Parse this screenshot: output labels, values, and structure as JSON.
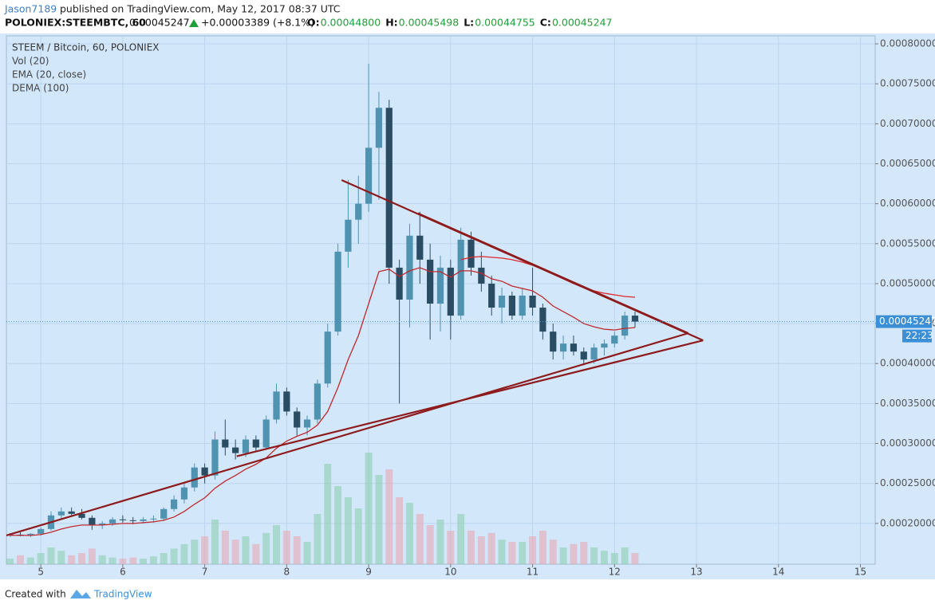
{
  "header": {
    "author": "Jason7189",
    "published": "published on TradingView.com, May 12, 2017 08:37 UTC",
    "symbol": "POLONIEX:STEEMBTC, 60",
    "last": "0.00045247",
    "change": "+0.00003389 (+8.1%)",
    "ohlc": [
      {
        "label": "O:",
        "value": "0.00044800"
      },
      {
        "label": "H:",
        "value": "0.00045498"
      },
      {
        "label": "L:",
        "value": "0.00044755"
      },
      {
        "label": "C:",
        "value": "0.00045247"
      }
    ]
  },
  "chart_data": {
    "type": "candlestick",
    "title": "STEEM / Bitcoin, 60, POLONIEX",
    "up_color": "#4f93b0",
    "down_color": "#2b4d63",
    "x": [
      4.625,
      4.75,
      4.875,
      5.0,
      5.125,
      5.25,
      5.375,
      5.5,
      5.625,
      5.75,
      5.875,
      6.0,
      6.125,
      6.25,
      6.375,
      6.5,
      6.625,
      6.75,
      6.875,
      7.0,
      7.125,
      7.25,
      7.375,
      7.5,
      7.625,
      7.75,
      7.875,
      8.0,
      8.125,
      8.25,
      8.375,
      8.5,
      8.625,
      8.75,
      8.875,
      9.0,
      9.125,
      9.25,
      9.375,
      9.5,
      9.625,
      9.75,
      9.875,
      10.0,
      10.125,
      10.25,
      10.375,
      10.5,
      10.625,
      10.75,
      10.875,
      11.0,
      11.125,
      11.25,
      11.375,
      11.5,
      11.625,
      11.75,
      11.875,
      12.0,
      12.125,
      12.25
    ],
    "open": [
      0.000185,
      0.000186,
      0.000185,
      0.000187,
      0.000193,
      0.00021,
      0.000215,
      0.000212,
      0.000207,
      0.000198,
      0.0002,
      0.000205,
      0.000204,
      0.000203,
      0.000205,
      0.000206,
      0.000218,
      0.00023,
      0.000245,
      0.00027,
      0.00026,
      0.000305,
      0.000295,
      0.000288,
      0.000305,
      0.000295,
      0.00033,
      0.000365,
      0.00034,
      0.00032,
      0.00033,
      0.000375,
      0.00044,
      0.00054,
      0.00058,
      0.0006,
      0.00067,
      0.00072,
      0.00052,
      0.00048,
      0.00056,
      0.00053,
      0.000475,
      0.00052,
      0.00046,
      0.000555,
      0.00052,
      0.0005,
      0.00047,
      0.000485,
      0.00046,
      0.000485,
      0.00047,
      0.00044,
      0.000415,
      0.000425,
      0.000415,
      0.000405,
      0.00042,
      0.000425,
      0.000435,
      0.00046
    ],
    "high": [
      0.000188,
      0.000189,
      0.000188,
      0.000195,
      0.000215,
      0.00022,
      0.00022,
      0.000218,
      0.00021,
      0.000203,
      0.000208,
      0.00021,
      0.000208,
      0.000208,
      0.00021,
      0.00022,
      0.000235,
      0.00025,
      0.000275,
      0.000275,
      0.000315,
      0.00033,
      0.000305,
      0.00031,
      0.00031,
      0.000335,
      0.000375,
      0.00037,
      0.000345,
      0.000335,
      0.00038,
      0.00045,
      0.00055,
      0.00063,
      0.000635,
      0.000775,
      0.00074,
      0.00073,
      0.00053,
      0.000575,
      0.00059,
      0.00055,
      0.000535,
      0.00053,
      0.00057,
      0.000565,
      0.00054,
      0.00051,
      0.000495,
      0.00049,
      0.000495,
      0.00052,
      0.000475,
      0.00045,
      0.000435,
      0.000435,
      0.00042,
      0.000425,
      0.00043,
      0.00044,
      0.000465,
      0.000465
    ],
    "low": [
      0.000183,
      0.000184,
      0.000183,
      0.000185,
      0.000191,
      0.000205,
      0.000208,
      0.000205,
      0.000192,
      0.000193,
      0.000197,
      0.000201,
      0.000199,
      0.0002,
      0.000201,
      0.000203,
      0.000215,
      0.000225,
      0.00024,
      0.00025,
      0.000255,
      0.000285,
      0.00028,
      0.000283,
      0.00029,
      0.000292,
      0.000325,
      0.000335,
      0.00031,
      0.00031,
      0.000325,
      0.00037,
      0.000435,
      0.00052,
      0.00055,
      0.00059,
      0.000605,
      0.0005,
      0.00035,
      0.000445,
      0.0005,
      0.00043,
      0.00044,
      0.00043,
      0.000455,
      0.00051,
      0.00049,
      0.00046,
      0.00045,
      0.000455,
      0.000455,
      0.00046,
      0.00043,
      0.000405,
      0.000405,
      0.00041,
      0.000398,
      0.0004,
      0.00041,
      0.00042,
      0.00043,
      0.000445
    ],
    "close": [
      0.000186,
      0.000185,
      0.000187,
      0.000193,
      0.00021,
      0.000215,
      0.000212,
      0.000207,
      0.000198,
      0.0002,
      0.000205,
      0.000204,
      0.000203,
      0.000205,
      0.000206,
      0.000218,
      0.00023,
      0.000245,
      0.00027,
      0.00026,
      0.000305,
      0.000295,
      0.000288,
      0.000305,
      0.000295,
      0.00033,
      0.000365,
      0.00034,
      0.00032,
      0.00033,
      0.000375,
      0.00044,
      0.00054,
      0.00058,
      0.0006,
      0.00067,
      0.00072,
      0.00052,
      0.00048,
      0.00056,
      0.00053,
      0.000475,
      0.00052,
      0.00046,
      0.000555,
      0.00052,
      0.0005,
      0.00047,
      0.000485,
      0.00046,
      0.000485,
      0.00047,
      0.00044,
      0.000415,
      0.000425,
      0.000415,
      0.000405,
      0.00042,
      0.000425,
      0.000435,
      0.00046,
      0.00045247
    ],
    "volume": {
      "name": "Vol (20)",
      "up_color": "#8ccfb0",
      "down_color": "#e8a9b4",
      "values": [
        5,
        8,
        6,
        10,
        15,
        12,
        8,
        10,
        14,
        8,
        6,
        5,
        6,
        5,
        7,
        10,
        14,
        18,
        22,
        25,
        40,
        30,
        22,
        25,
        18,
        28,
        35,
        30,
        25,
        20,
        45,
        90,
        70,
        60,
        50,
        100,
        80,
        85,
        60,
        55,
        45,
        35,
        40,
        30,
        45,
        30,
        25,
        28,
        22,
        20,
        20,
        25,
        30,
        22,
        15,
        18,
        20,
        15,
        12,
        10,
        15,
        10
      ]
    },
    "series": [
      {
        "name": "EMA (20, close)",
        "color": "#c0282d",
        "values": [
          0.000185,
          0.000185,
          0.000185,
          0.000186,
          0.000189,
          0.000193,
          0.000196,
          0.000198,
          0.000198,
          0.000198,
          0.000199,
          0.0002,
          0.0002,
          0.000201,
          0.000202,
          0.000204,
          0.000208,
          0.000215,
          0.000224,
          0.000232,
          0.000244,
          0.000253,
          0.00026,
          0.000268,
          0.000274,
          0.000282,
          0.000294,
          0.000303,
          0.000309,
          0.000314,
          0.000323,
          0.00034,
          0.00037,
          0.000405,
          0.000435,
          0.000475,
          0.000515,
          0.000518,
          0.000509,
          0.000516,
          0.00052,
          0.000515,
          0.000515,
          0.000508,
          0.000516,
          0.000516,
          0.000513,
          0.000506,
          0.000503,
          0.000497,
          0.000494,
          0.000491,
          0.000483,
          0.000472,
          0.000465,
          0.000458,
          0.00045,
          0.000446,
          0.000443,
          0.000442,
          0.000444,
          0.000445
        ]
      },
      {
        "name": "DEMA (100)",
        "color": "#e0262d",
        "values": [
          null,
          null,
          null,
          null,
          null,
          null,
          null,
          null,
          null,
          null,
          null,
          null,
          null,
          null,
          null,
          null,
          null,
          null,
          null,
          null,
          null,
          null,
          null,
          null,
          null,
          null,
          null,
          null,
          null,
          null,
          null,
          null,
          null,
          null,
          null,
          null,
          null,
          null,
          null,
          null,
          null,
          null,
          null,
          null,
          0.00053,
          0.000533,
          0.000534,
          0.000533,
          0.000532,
          0.00053,
          0.000527,
          0.000523,
          0.000518,
          0.000512,
          0.000506,
          0.0005,
          0.000495,
          0.000491,
          0.000488,
          0.000486,
          0.000484,
          0.000483
        ]
      }
    ],
    "trendlines": [
      {
        "color": "#8e1b1b",
        "x": [
          8.67,
          13.08
        ],
        "values": [
          0.0006296,
          0.000429
        ]
      },
      {
        "color": "#8e1b1b",
        "x": [
          9.6,
          12.9
        ],
        "values": [
          0.000588,
          0.000438
        ]
      },
      {
        "color": "#8e1b1b",
        "x": [
          7.39,
          13.08
        ],
        "values": [
          0.000284,
          0.000429
        ]
      },
      {
        "color": "#8e1b1b",
        "x": [
          4.58,
          12.9
        ],
        "values": [
          0.000185,
          0.000438
        ]
      }
    ],
    "last_price": 0.00045247,
    "countdown": "22:23",
    "xlim": [
      4.58,
      15.18
    ],
    "xticks": [
      5,
      6,
      7,
      8,
      9,
      10,
      11,
      12,
      13,
      14,
      15
    ],
    "ylim": [
      0.000149,
      0.00081
    ],
    "yticks": [
      {
        "value": 0.0002,
        "label": "0.00020000"
      },
      {
        "value": 0.00025,
        "label": "0.00025000"
      },
      {
        "value": 0.0003,
        "label": "0.00030000"
      },
      {
        "value": 0.00035,
        "label": "0.00035000"
      },
      {
        "value": 0.0004,
        "label": "0.00040000"
      },
      {
        "value": 0.00045,
        "label": "0.00045000"
      },
      {
        "value": 0.0005,
        "label": "0.00050000"
      },
      {
        "value": 0.00055,
        "label": "0.00055000"
      },
      {
        "value": 0.0006,
        "label": "0.00060000"
      },
      {
        "value": 0.00065,
        "label": "0.00065000"
      },
      {
        "value": 0.0007,
        "label": "0.00070000"
      },
      {
        "value": 0.00075,
        "label": "0.00075000"
      },
      {
        "value": 0.0008,
        "label": "0.00080000"
      }
    ],
    "grid": true
  },
  "footer": {
    "created": "Created with",
    "brand": "TradingView"
  }
}
